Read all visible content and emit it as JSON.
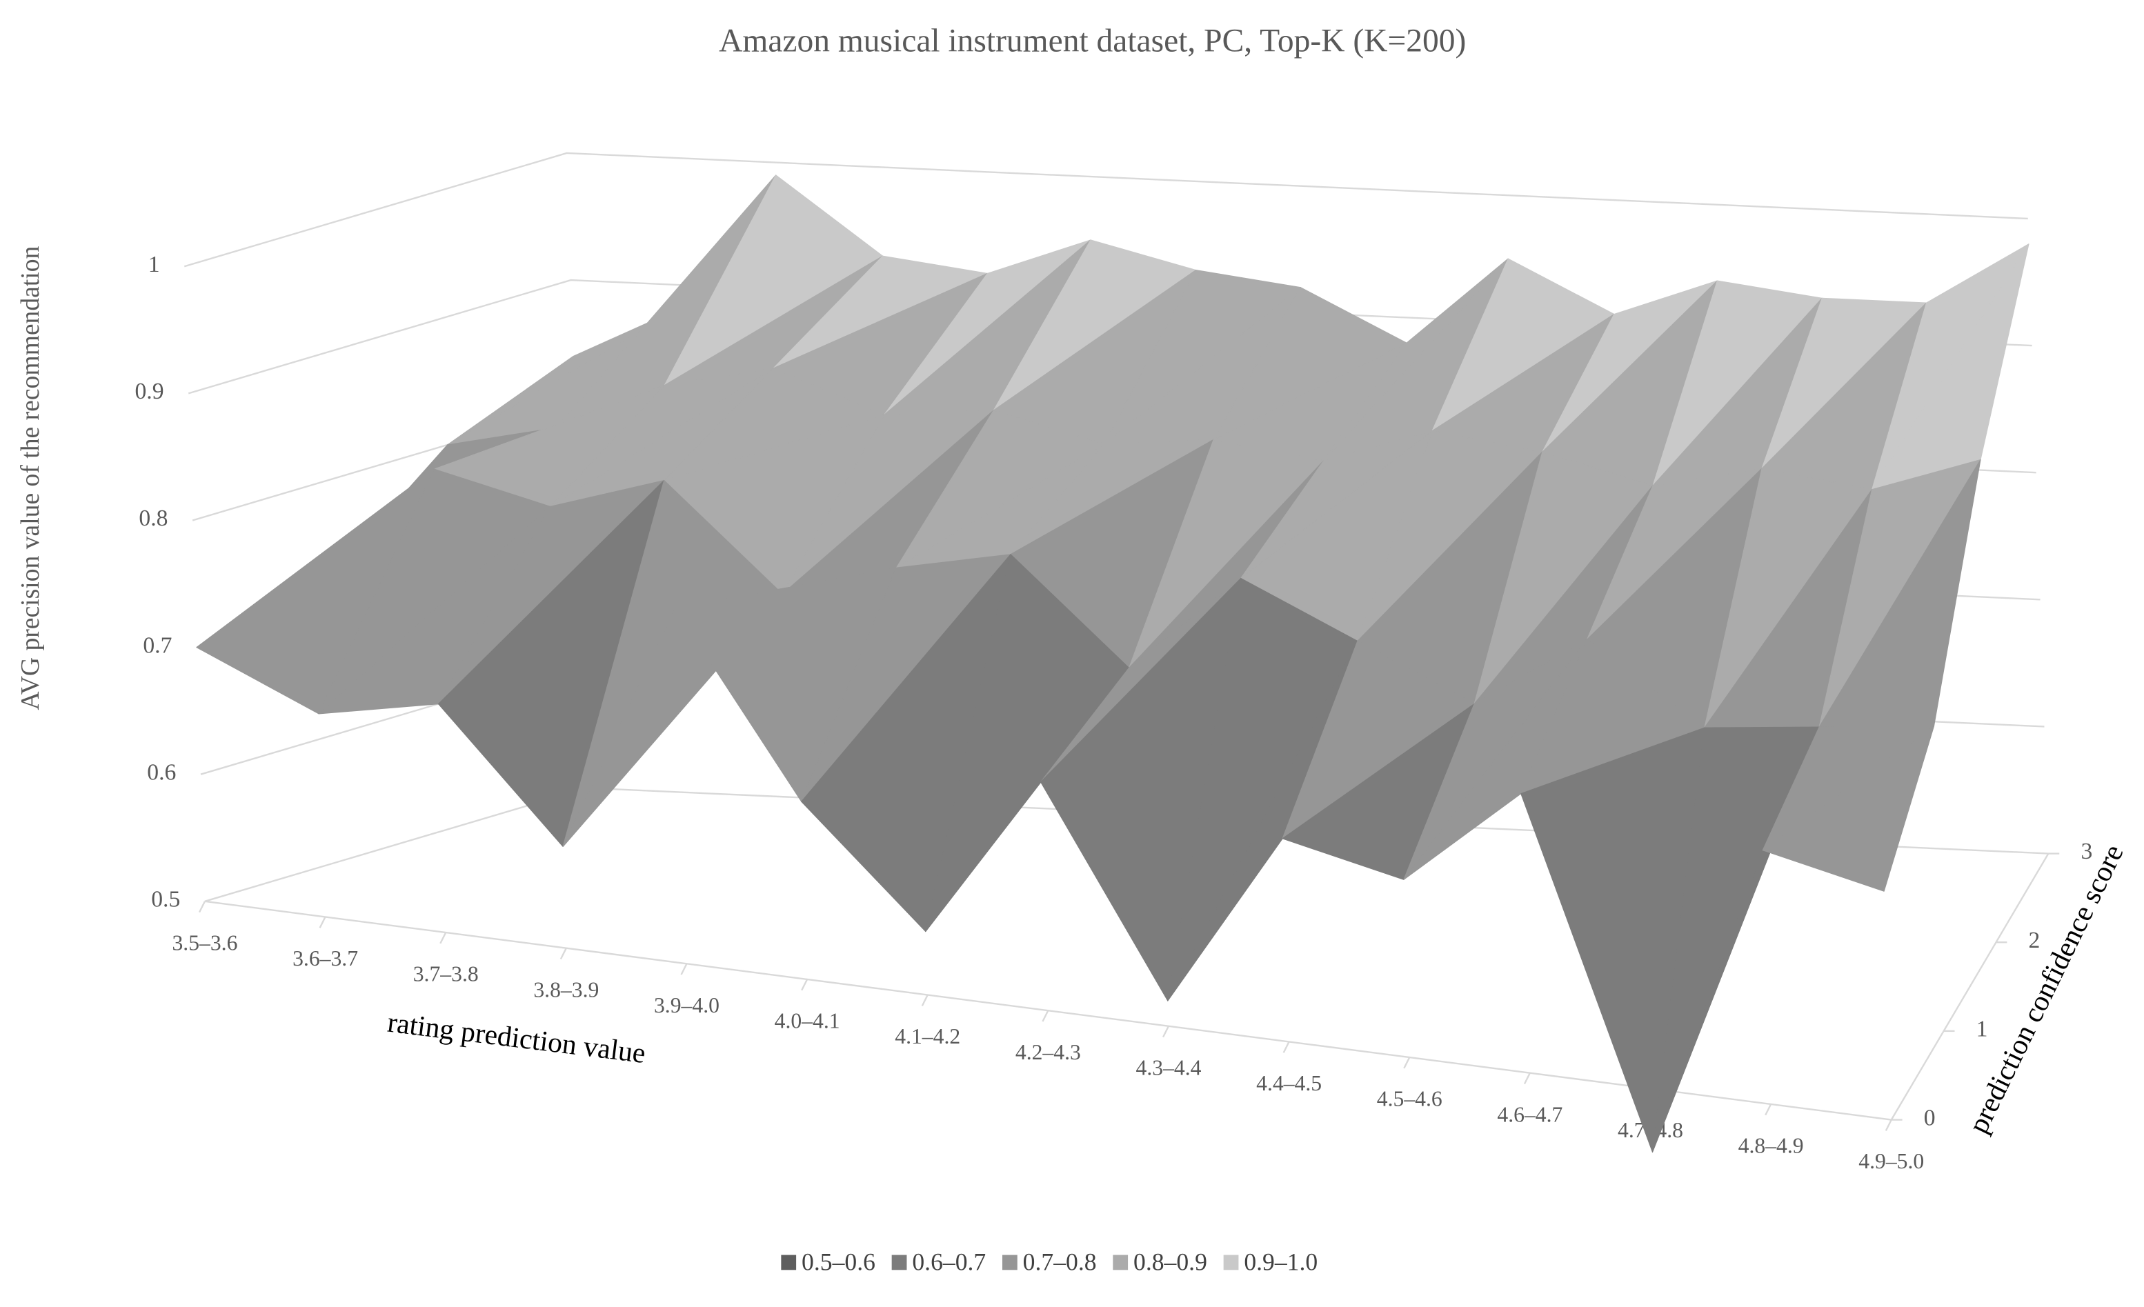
{
  "chart_data": {
    "type": "surface",
    "title": "Amazon musical instrument dataset, PC, Top-K (K=200)",
    "x_label": "rating prediction value",
    "y_label": "AVG precision value of the recommendation",
    "depth_label": "prediction confidence score",
    "categories": [
      "3.5–3.6",
      "3.6–3.7",
      "3.7–3.8",
      "3.8–3.9",
      "3.9–4.0",
      "4.0–4.1",
      "4.1–4.2",
      "4.2–4.3",
      "4.3–4.4",
      "4.4–4.5",
      "4.5–4.6",
      "4.6–4.7",
      "4.7–4.8",
      "4.8–4.9",
      "4.9–5.0"
    ],
    "series": [
      {
        "name": "0",
        "values": [
          0.7,
          0.66,
          0.68,
          0.58,
          0.78,
          0.64,
          0.55,
          0.68,
          0.52,
          0.66,
          0.64,
          0.72,
          0.45,
          0.7,
          0.68
        ]
      },
      {
        "name": "1",
        "values": [
          0.72,
          0.82,
          0.8,
          0.83,
          0.75,
          0.78,
          0.8,
          0.72,
          0.8,
          0.76,
          0.72,
          0.78,
          0.72,
          0.73,
          0.74
        ]
      },
      {
        "name": "2",
        "values": [
          0.8,
          0.82,
          0.86,
          0.88,
          0.85,
          0.86,
          0.84,
          0.85,
          0.84,
          0.87,
          0.86,
          0.84,
          0.86,
          0.85,
          0.88
        ]
      },
      {
        "name": "3",
        "values": [
          0.84,
          0.88,
          0.99,
          0.93,
          0.92,
          0.95,
          0.93,
          0.92,
          0.88,
          0.95,
          0.91,
          0.94,
          0.93,
          0.93,
          0.98
        ]
      }
    ],
    "ylim": [
      0.5,
      1
    ],
    "yticks": [
      0.5,
      0.6,
      0.7,
      0.8,
      0.9,
      1
    ],
    "legend": [
      {
        "name": "0.5–0.6",
        "from": 0.5,
        "to": 0.6,
        "color": "#5e5e5e"
      },
      {
        "name": "0.6–0.7",
        "from": 0.6,
        "to": 0.7,
        "color": "#7c7c7c"
      },
      {
        "name": "0.7–0.8",
        "from": 0.7,
        "to": 0.8,
        "color": "#969696"
      },
      {
        "name": "0.8–0.9",
        "from": 0.8,
        "to": 0.9,
        "color": "#ababab"
      },
      {
        "name": "0.9–1.0",
        "from": 0.9,
        "to": 1.0,
        "color": "#c9c9c9"
      }
    ]
  }
}
